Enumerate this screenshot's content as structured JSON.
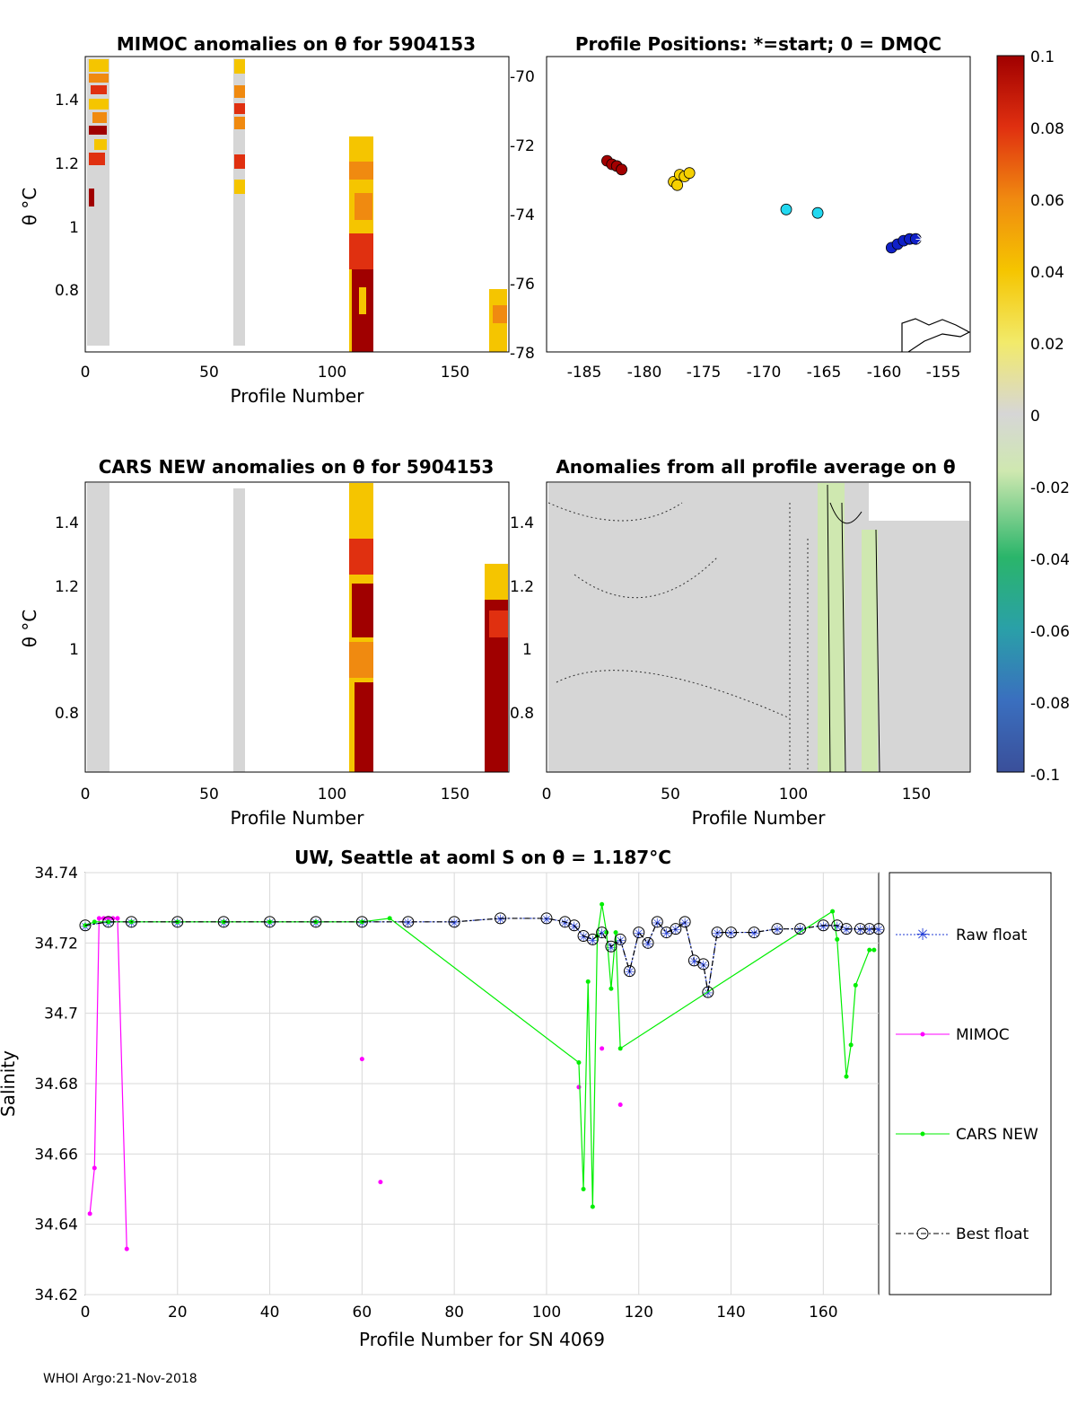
{
  "colors": {
    "raw": "#1f3ad6",
    "mimoc": "#ff00ff",
    "cars": "#00ee00",
    "best": "#000000",
    "grid": "#d9d9d9",
    "neutral": "#d6d6d6"
  },
  "colorbar": {
    "ticks": [
      "0.1",
      "0.08",
      "0.06",
      "0.04",
      "0.02",
      "0",
      "-0.02",
      "-0.04",
      "-0.06",
      "-0.08",
      "-0.1"
    ],
    "range": [
      -0.1,
      0.1
    ]
  },
  "panels": {
    "mimoc": {
      "title": "MIMOC anomalies on θ  for 5904153",
      "ylabel": "θ °C",
      "xlabel": "Profile Number",
      "yticks": [
        "1.4",
        "1.2",
        "1",
        "0.8"
      ],
      "xticks": [
        "0",
        "50",
        "100",
        "150"
      ],
      "xlim": [
        0,
        172
      ],
      "ylim": [
        0.62,
        1.53
      ]
    },
    "positions": {
      "title": "Profile Positions: *=start; 0 = DMQC",
      "yticks": [
        "-70",
        "-72",
        "-74",
        "-76",
        "-78"
      ],
      "xticks": [
        "-185",
        "-180",
        "-175",
        "-170",
        "-165",
        "-160",
        "-155"
      ],
      "xlim": [
        -187,
        -152
      ],
      "ylim": [
        -78,
        -69.5
      ]
    },
    "cars": {
      "title": "CARS NEW anomalies on θ for 5904153",
      "ylabel": "θ °C",
      "xlabel": "Profile Number",
      "yticks": [
        "1.4",
        "1.2",
        "1",
        "0.8"
      ],
      "xticks": [
        "0",
        "50",
        "100",
        "150"
      ]
    },
    "allavg": {
      "title": "Anomalies from all profile average on θ",
      "xlabel": "Profile Number",
      "yticks": [
        "1.4",
        "1.2",
        "1",
        "0.8"
      ],
      "xticks": [
        "0",
        "50",
        "100",
        "150"
      ]
    }
  },
  "chart_data": {
    "type": "line",
    "title": "UW, Seattle at aoml S on θ = 1.187°C",
    "xlabel": "Profile Number for SN 4069",
    "ylabel": "Salinity",
    "xlim": [
      0,
      172
    ],
    "ylim": [
      34.62,
      34.74
    ],
    "xticks": [
      "0",
      "20",
      "40",
      "60",
      "80",
      "100",
      "120",
      "140",
      "160"
    ],
    "yticks": [
      "34.74",
      "34.72",
      "34.7",
      "34.68",
      "34.66",
      "34.64",
      "34.62"
    ],
    "legend": [
      "Raw float",
      "MIMOC",
      "CARS NEW",
      "Best float"
    ],
    "series": [
      {
        "name": "Raw float",
        "x": [
          0,
          5,
          10,
          20,
          30,
          40,
          50,
          60,
          70,
          80,
          90,
          100,
          104,
          106,
          108,
          110,
          112,
          114,
          116,
          118,
          120,
          122,
          124,
          126,
          128,
          130,
          132,
          134,
          135,
          137,
          140,
          145,
          150,
          155,
          160,
          163,
          165,
          168,
          170,
          172
        ],
        "y": [
          34.725,
          34.726,
          34.726,
          34.726,
          34.726,
          34.726,
          34.726,
          34.726,
          34.726,
          34.726,
          34.727,
          34.727,
          34.726,
          34.725,
          34.722,
          34.721,
          34.723,
          34.719,
          34.721,
          34.712,
          34.723,
          34.72,
          34.726,
          34.723,
          34.724,
          34.726,
          34.715,
          34.714,
          34.706,
          34.723,
          34.723,
          34.723,
          34.724,
          34.724,
          34.725,
          34.725,
          34.724,
          34.724,
          34.724,
          34.724
        ]
      },
      {
        "name": "MIMOC",
        "x": [
          1,
          2,
          3,
          4,
          5,
          6,
          7,
          9,
          60,
          64,
          107,
          112,
          116
        ],
        "y": [
          34.643,
          34.656,
          34.727,
          34.727,
          34.727,
          34.727,
          34.727,
          34.633,
          34.687,
          34.652,
          34.679,
          34.69,
          34.674
        ]
      },
      {
        "name": "CARS NEW",
        "x": [
          0,
          2,
          5,
          10,
          20,
          30,
          40,
          50,
          60,
          66,
          107,
          108,
          109,
          110,
          111,
          112,
          113,
          114,
          115,
          116,
          162,
          163,
          165,
          166,
          167,
          170,
          171
        ],
        "y": [
          34.725,
          34.726,
          34.726,
          34.726,
          34.726,
          34.726,
          34.726,
          34.726,
          34.726,
          34.727,
          34.686,
          34.65,
          34.709,
          34.645,
          34.722,
          34.731,
          34.723,
          34.707,
          34.723,
          34.69,
          34.729,
          34.721,
          34.682,
          34.691,
          34.708,
          34.718,
          34.718
        ]
      },
      {
        "name": "Best float",
        "x": [
          0,
          5,
          10,
          20,
          30,
          40,
          50,
          60,
          70,
          80,
          90,
          100,
          104,
          106,
          108,
          110,
          112,
          114,
          116,
          118,
          120,
          122,
          124,
          126,
          128,
          130,
          132,
          134,
          135,
          137,
          140,
          145,
          150,
          155,
          160,
          163,
          165,
          168,
          170,
          172
        ],
        "y": [
          34.725,
          34.726,
          34.726,
          34.726,
          34.726,
          34.726,
          34.726,
          34.726,
          34.726,
          34.726,
          34.727,
          34.727,
          34.726,
          34.725,
          34.722,
          34.721,
          34.723,
          34.719,
          34.721,
          34.712,
          34.723,
          34.72,
          34.726,
          34.723,
          34.724,
          34.726,
          34.715,
          34.714,
          34.706,
          34.723,
          34.723,
          34.723,
          34.724,
          34.724,
          34.725,
          34.725,
          34.724,
          34.724,
          34.724,
          34.724
        ]
      }
    ]
  },
  "positions_data": {
    "groups": [
      {
        "color": "#a30000",
        "points": [
          [
            -182,
            -72.5
          ],
          [
            -181.6,
            -72.6
          ],
          [
            -181.2,
            -72.65
          ],
          [
            -180.8,
            -72.75
          ]
        ]
      },
      {
        "color": "#f5d000",
        "points": [
          [
            -176.5,
            -73.1
          ],
          [
            -176,
            -72.9
          ],
          [
            -175.6,
            -72.95
          ],
          [
            -175.2,
            -72.85
          ],
          [
            -176.2,
            -73.2
          ]
        ]
      },
      {
        "color": "#22d8f0",
        "points": [
          [
            -167.2,
            -73.9
          ],
          [
            -164.6,
            -74.0
          ]
        ]
      },
      {
        "color": "#1020c8",
        "points": [
          [
            -158.5,
            -75.0
          ],
          [
            -158,
            -74.9
          ],
          [
            -157.5,
            -74.8
          ],
          [
            -157,
            -74.75
          ],
          [
            -156.5,
            -74.75
          ]
        ]
      }
    ],
    "start": [
      -156,
      -74.75
    ]
  },
  "footer": "WHOI Argo:21-Nov-2018"
}
